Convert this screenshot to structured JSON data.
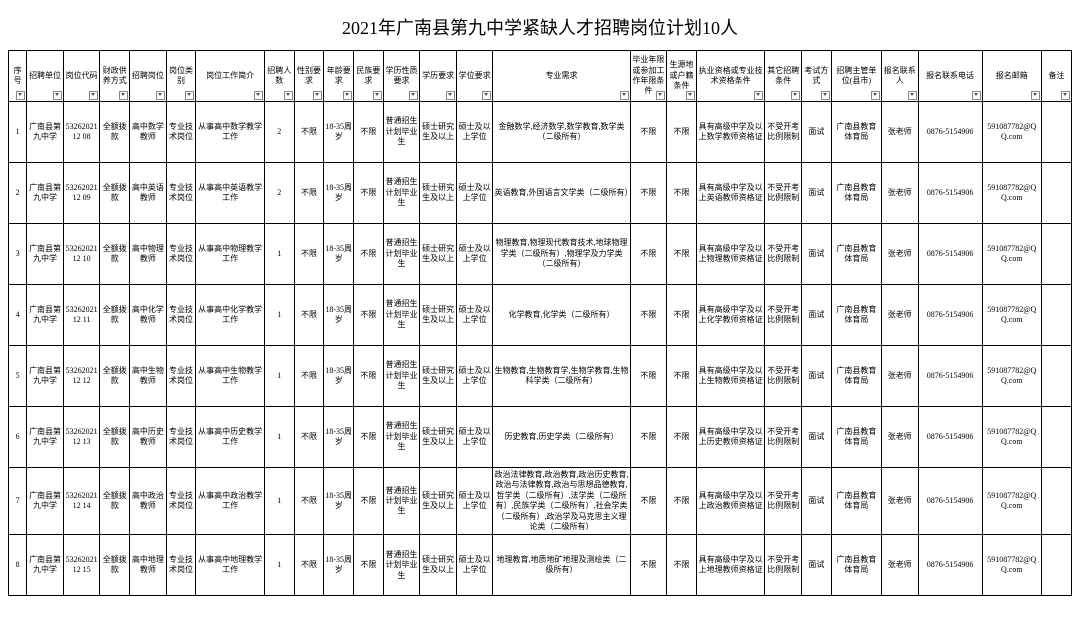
{
  "title": "2021年广南县第九中学紧缺人才招聘岗位计划10人",
  "headers": [
    "序号",
    "招聘单位",
    "岗位代码",
    "财政供养方式",
    "招聘岗位",
    "岗位类别",
    "岗位工作简介",
    "招聘人数",
    "性别要求",
    "年龄要求",
    "民族要求",
    "学历性质要求",
    "学历要求",
    "学位要求",
    "专业需求",
    "毕业年限或参加工作年限条件",
    "生源地或户籍条件",
    "执业资格或专业技术资格条件",
    "其它招聘条件",
    "考试方式",
    "招聘主管单位(县市)",
    "报名联系人",
    "报名联系电话",
    "报名邮箱",
    "备注"
  ],
  "unit": "广南县第九中学",
  "fund": "全额拨款",
  "ptype": "专业技术岗位",
  "gender": "不限",
  "age": "18-35周岁",
  "ethnic": "不限",
  "edu_nature": "普通招生计划毕业生",
  "edu": "硕士研究生及以上",
  "degree": "硕士及以上学位",
  "gradlimit": "不限",
  "region": "不限",
  "other": "不受开考比例限制",
  "exam": "面试",
  "dept": "广南县教育体育局",
  "contact": "张老师",
  "phone": "0876-5154906",
  "email": "591087782@QQ.com",
  "rows": [
    {
      "no": "1",
      "code": "5326202112 08",
      "pos": "高中数学教师",
      "desc": "从事高中数学教学工作",
      "n": "2",
      "major": "金融数学,经济数学,数学教育,数学类（二级所有）",
      "qual": "具有高级中学及以上数学教师资格证"
    },
    {
      "no": "2",
      "code": "5326202112 09",
      "pos": "高中英语教师",
      "desc": "从事高中英语教学工作",
      "n": "2",
      "major": "英语教育,外国语言文学类（二级所有）",
      "qual": "具有高级中学及以上英语教师资格证"
    },
    {
      "no": "3",
      "code": "5326202112 10",
      "pos": "高中物理教师",
      "desc": "从事高中物理教学工作",
      "n": "1",
      "major": "物理教育,物理现代教育技术,地球物理学类（二级所有）,物理学及力学类（二级所有）",
      "qual": "具有高级中学及以上物理教师资格证"
    },
    {
      "no": "4",
      "code": "5326202112 11",
      "pos": "高中化学教师",
      "desc": "从事高中化学教学工作",
      "n": "1",
      "major": "化学教育,化学类（二级所有）",
      "qual": "具有高级中学及以上化学教师资格证"
    },
    {
      "no": "5",
      "code": "5326202112 12",
      "pos": "高中生物教师",
      "desc": "从事高中生物教学工作",
      "n": "1",
      "major": "生物教育,生物教育学,生物学教育,生物科学类（二级所有）",
      "qual": "具有高级中学及以上生物教师资格证"
    },
    {
      "no": "6",
      "code": "5326202112 13",
      "pos": "高中历史教师",
      "desc": "从事高中历史教学工作",
      "n": "1",
      "major": "历史教育,历史学类（二级所有）",
      "qual": "具有高级中学及以上历史教师资格证"
    },
    {
      "no": "7",
      "code": "5326202112 14",
      "pos": "高中政治教师",
      "desc": "从事高中政治教学工作",
      "n": "1",
      "major": "政治法律教育,政治教育,政治历史教育,政治与法律教育,政治与思想品德教育,哲学类（二级所有）,法学类（二级所有）,民族学类（二级所有）,社会学类（二级所有）,政治学及马克思主义理论类（二级所有）",
      "qual": "具有高级中学及以上政治教师资格证"
    },
    {
      "no": "8",
      "code": "5326202112 15",
      "pos": "高中地理教师",
      "desc": "从事高中地理教学工作",
      "n": "1",
      "major": "地理教育,地质地矿地理及测绘类（二级所有）",
      "qual": "具有高级中学及以上地理教师资格证"
    }
  ]
}
